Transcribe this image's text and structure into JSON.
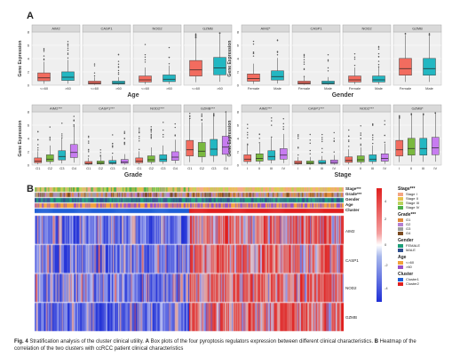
{
  "panel_a": {
    "letter": "A",
    "age_row": {
      "xtitle": "Age",
      "ylabel": "Gene Expression",
      "facets": [
        "AIM2",
        "CASP1",
        "NOD2",
        "GZMB"
      ],
      "categories": [
        "<=60",
        ">60"
      ],
      "yticks": [
        "0",
        "2",
        "4",
        "6",
        "8"
      ]
    },
    "gender_row": {
      "xtitle": "Gender",
      "ylabel": "Gene Expression",
      "facets": [
        "AIM2*",
        "CASP1",
        "NOD2",
        "GZMB"
      ],
      "categories": [
        "Female",
        "Male"
      ],
      "yticks": [
        "0",
        "2",
        "4",
        "6",
        "8"
      ]
    },
    "grade_row": {
      "xtitle": "Grade",
      "ylabel": "Gene Expression",
      "facets": [
        "AIM2***",
        "CASP1***",
        "NOD2***",
        "GZMB***"
      ],
      "categories": [
        "G1",
        "G2",
        "G3",
        "G4"
      ],
      "yticks": [
        "0",
        "2",
        "4",
        "6",
        "8"
      ]
    },
    "stage_row": {
      "xtitle": "Stage",
      "ylabel": "Gene Expression",
      "facets": [
        "AIM2***",
        "CASP1***",
        "NOD2***",
        "GZMB*"
      ],
      "categories": [
        "I",
        "II",
        "III",
        "IV"
      ],
      "yticks": [
        "0",
        "2",
        "4",
        "6",
        "8"
      ]
    }
  },
  "panel_b": {
    "letter": "B",
    "annotation_labels": [
      "Stage***",
      "Grade***",
      "Gender",
      "Age",
      "Cluster"
    ],
    "gene_labels": [
      "AIM2",
      "CASP1",
      "NOD2",
      "GZMB"
    ],
    "color_scale_ticks": [
      "4",
      "2",
      "0",
      "-2",
      "-4"
    ],
    "legends": [
      {
        "title": "Stage***",
        "items": [
          {
            "label": "Stage I",
            "color": "#f4a582"
          },
          {
            "label": "Stage II",
            "color": "#e6c34a"
          },
          {
            "label": "Stage III",
            "color": "#b8d35b"
          },
          {
            "label": "Stage IV",
            "color": "#4daf4a"
          }
        ]
      },
      {
        "title": "Grade***",
        "items": [
          {
            "label": "G1",
            "color": "#e08a3c"
          },
          {
            "label": "G2",
            "color": "#b57fd1"
          },
          {
            "label": "G3",
            "color": "#9e9e9e"
          },
          {
            "label": "G4",
            "color": "#7a4a1f"
          }
        ]
      },
      {
        "title": "Gender",
        "items": [
          {
            "label": "FEMALE",
            "color": "#1b9e77"
          },
          {
            "label": "MALE",
            "color": "#2f4f8f"
          }
        ]
      },
      {
        "title": "Age",
        "items": [
          {
            "label": "<=60",
            "color": "#f2a23a"
          },
          {
            "label": ">60",
            "color": "#9b4fc4"
          }
        ]
      },
      {
        "title": "Cluster",
        "items": [
          {
            "label": "Cluster1",
            "color": "#1f5fd6"
          },
          {
            "label": "Cluster2",
            "color": "#e0201f"
          }
        ]
      }
    ]
  },
  "caption": {
    "fig": "Fig. 4",
    "text_1": " Stratification analysis of the cluster clinical utility. ",
    "a_label": "A",
    "text_2": " Box plots of the four pyroptosis regulators expression between different clinical characteristics. ",
    "b_label": "B",
    "text_3": " Heatmap of the correlation of the two clusters with ccRCC patient clinical characteristics"
  },
  "colors": {
    "age_box": [
      "#f26c5f",
      "#23b7c2"
    ],
    "grade_box": [
      "#f26c5f",
      "#7ab93f",
      "#23b7c2",
      "#c77cf0"
    ],
    "cluster1": "#1f5fd6",
    "cluster2": "#e0201f"
  }
}
